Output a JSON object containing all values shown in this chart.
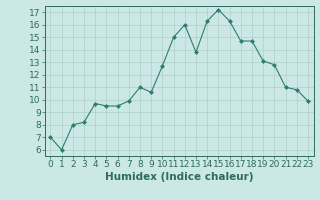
{
  "x": [
    0,
    1,
    2,
    3,
    4,
    5,
    6,
    7,
    8,
    9,
    10,
    11,
    12,
    13,
    14,
    15,
    16,
    17,
    18,
    19,
    20,
    21,
    22,
    23
  ],
  "y": [
    7.0,
    6.0,
    8.0,
    8.2,
    9.7,
    9.5,
    9.5,
    9.9,
    11.0,
    10.6,
    12.7,
    15.0,
    16.0,
    13.8,
    16.3,
    17.2,
    16.3,
    14.7,
    14.7,
    13.1,
    12.8,
    11.0,
    10.8,
    9.9
  ],
  "line_color": "#2e7d6e",
  "marker": "D",
  "marker_size": 2.0,
  "bg_color": "#cce8e6",
  "grid_color": "#b0d0cc",
  "xlabel": "Humidex (Indice chaleur)",
  "xlim": [
    -0.5,
    23.5
  ],
  "ylim": [
    5.5,
    17.5
  ],
  "yticks": [
    6,
    7,
    8,
    9,
    10,
    11,
    12,
    13,
    14,
    15,
    16,
    17
  ],
  "xticks": [
    0,
    1,
    2,
    3,
    4,
    5,
    6,
    7,
    8,
    9,
    10,
    11,
    12,
    13,
    14,
    15,
    16,
    17,
    18,
    19,
    20,
    21,
    22,
    23
  ],
  "tick_color": "#2e6b5e",
  "spine_color": "#2e6b5e",
  "xlabel_fontsize": 7.5,
  "tick_fontsize": 6.5
}
